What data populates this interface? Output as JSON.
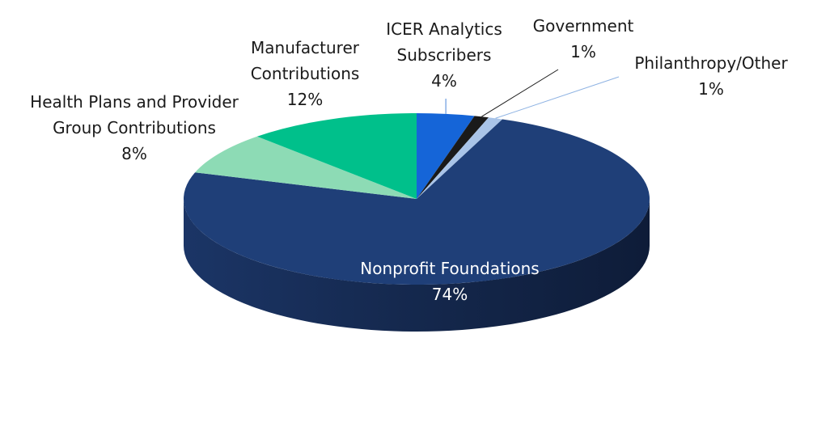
{
  "chart_data": {
    "type": "pie",
    "title": "",
    "categories": [
      "ICER Analytics Subscribers",
      "Government",
      "Philanthropy/Other",
      "Nonprofit Foundations",
      "Health Plans and Provider Group Contributions",
      "Manufacturer Contributions"
    ],
    "values": [
      4,
      1,
      1,
      74,
      8,
      12
    ],
    "value_labels": [
      "4%",
      "1%",
      "1%",
      "74%",
      "8%",
      "12%"
    ],
    "label_lines": [
      [
        "ICER Analytics",
        "Subscribers"
      ],
      [
        "Government"
      ],
      [
        "Philanthropy/Other"
      ],
      [
        "Nonprofit Foundations"
      ],
      [
        "Health Plans and Provider",
        "Group Contributions"
      ],
      [
        "Manufacturer",
        "Contributions"
      ]
    ],
    "colors": [
      "#1565d8",
      "#1a1a1a",
      "#a9c4e8",
      "#1f3f78",
      "#8ddbb5",
      "#00c08b"
    ],
    "style": "3d-pie",
    "legend": "none"
  }
}
